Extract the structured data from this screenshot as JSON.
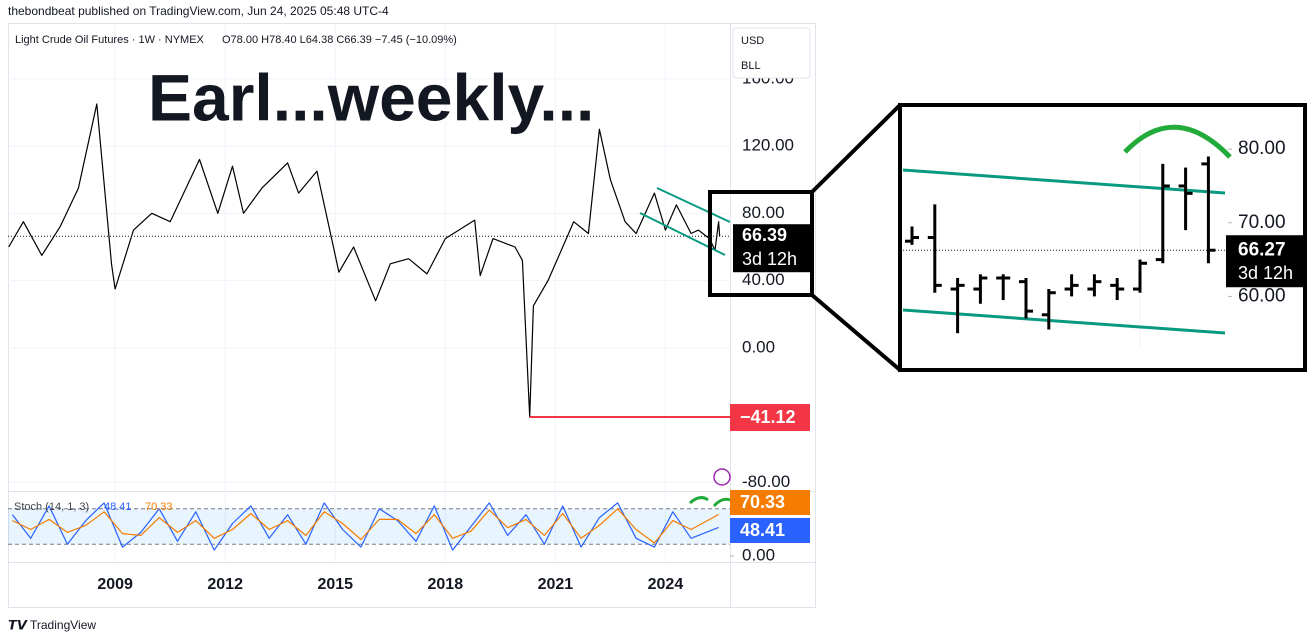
{
  "header": {
    "publisher": "thebondbeat published on TradingView.com, Jun 24, 2025 05:48 UTC-4",
    "footer": "TradingView"
  },
  "chart_data": [
    {
      "type": "line",
      "title": "Light Crude Oil Futures · 1W · NYMEX",
      "legend_text": "O78.00  H78.40  L64.38  C66.39  −7.45 (−10.09%)",
      "annotation": "Earl...weekly...",
      "currency": "USD",
      "unit": "BLL",
      "color": "#000000",
      "x": [
        2006.1,
        2006.5,
        2007.0,
        2007.5,
        2008.0,
        2008.5,
        2008.9,
        2009.0,
        2009.5,
        2010.0,
        2010.5,
        2011.3,
        2011.8,
        2012.2,
        2012.5,
        2013.0,
        2013.7,
        2014.0,
        2014.5,
        2014.9,
        2015.1,
        2015.5,
        2016.1,
        2016.5,
        2017.0,
        2017.5,
        2018.0,
        2018.8,
        2018.95,
        2019.3,
        2019.9,
        2020.1,
        2020.3,
        2020.4,
        2020.8,
        2021.0,
        2021.5,
        2021.9,
        2022.2,
        2022.5,
        2022.9,
        2023.2,
        2023.7,
        2024.0,
        2024.3,
        2024.7,
        2024.9,
        2025.2,
        2025.35,
        2025.45,
        2025.48
      ],
      "values": [
        60,
        75,
        55,
        72,
        95,
        145,
        50,
        35,
        70,
        80,
        75,
        112,
        80,
        108,
        80,
        95,
        110,
        92,
        105,
        65,
        45,
        60,
        28,
        50,
        53,
        44,
        65,
        76,
        43,
        65,
        60,
        52,
        -41.12,
        25,
        40,
        50,
        75,
        68,
        130,
        100,
        75,
        68,
        92,
        70,
        85,
        68,
        70,
        65,
        58,
        75,
        66.39
      ],
      "xlim": [
        2006.08,
        2025.76
      ],
      "xticks": [
        2009,
        2012,
        2015,
        2018,
        2021,
        2024
      ],
      "ylim": [
        -84.5,
        189
      ],
      "yticks": [
        {
          "value": -80,
          "label": "-80.00"
        },
        {
          "value": 0,
          "label": "0.00"
        },
        {
          "value": 40,
          "label": "40.00"
        },
        {
          "value": 80,
          "label": "80.00"
        },
        {
          "value": 120,
          "label": "120.00"
        },
        {
          "value": 160,
          "label": "160.00"
        }
      ],
      "last_price": 66.39,
      "countdown": "3d 12h",
      "low_label": {
        "value": -41.12,
        "label": "−41.12"
      },
      "low_color": "#f23645"
    },
    {
      "type": "line",
      "title": "Stoch (14, 1, 3)",
      "x": [
        2006.2,
        2006.7,
        2007.2,
        2007.7,
        2008.2,
        2008.7,
        2009.2,
        2009.7,
        2010.2,
        2010.7,
        2011.2,
        2011.7,
        2012.2,
        2012.7,
        2013.2,
        2013.7,
        2014.2,
        2014.7,
        2015.2,
        2015.7,
        2016.2,
        2016.7,
        2017.2,
        2017.7,
        2018.2,
        2018.7,
        2019.2,
        2019.7,
        2020.2,
        2020.7,
        2021.2,
        2021.7,
        2022.2,
        2022.7,
        2023.2,
        2023.7,
        2024.2,
        2024.7,
        2025.45
      ],
      "series": [
        {
          "color": "#2962ff",
          "values": [
            70,
            30,
            85,
            20,
            60,
            90,
            15,
            40,
            80,
            25,
            75,
            10,
            55,
            85,
            30,
            70,
            20,
            90,
            45,
            15,
            80,
            60,
            25,
            85,
            10,
            50,
            90,
            35,
            70,
            20,
            85,
            15,
            65,
            90,
            30,
            15,
            75,
            30,
            48.41
          ]
        },
        {
          "color": "#f57c00",
          "values": [
            60,
            45,
            62,
            40,
            52,
            75,
            38,
            35,
            65,
            40,
            60,
            30,
            45,
            72,
            45,
            60,
            35,
            75,
            55,
            28,
            62,
            62,
            38,
            70,
            30,
            42,
            78,
            48,
            62,
            35,
            72,
            30,
            52,
            80,
            45,
            22,
            60,
            45,
            70.33
          ]
        }
      ],
      "ylim": [
        0,
        100
      ],
      "yticks": [
        {
          "value": 0,
          "label": "0.00"
        }
      ],
      "bands": [
        20,
        80
      ]
    },
    {
      "type": "ohlc",
      "color": "#000000",
      "open": [
        67.5,
        68,
        61,
        61,
        62.5,
        62,
        57.5,
        61,
        61,
        61.5,
        61,
        65,
        75,
        78
      ],
      "high": [
        69.5,
        72.5,
        62.5,
        63,
        63,
        62.5,
        61,
        63,
        63,
        62.5,
        65,
        78,
        77.5,
        79
      ],
      "low": [
        67,
        60.5,
        55,
        59,
        59.5,
        57,
        55.5,
        60,
        60,
        59.5,
        60.5,
        64.5,
        69,
        64.5
      ],
      "close": [
        68,
        61.5,
        61.5,
        62.5,
        62.5,
        58,
        60.5,
        61.5,
        62,
        61,
        64.5,
        75,
        74,
        66.27
      ],
      "ylim": [
        50,
        86
      ],
      "yticks": [
        {
          "value": 60,
          "label": "60.00"
        },
        {
          "value": 70,
          "label": "70.00"
        },
        {
          "value": 80,
          "label": "80.00"
        }
      ],
      "last_price": 66.27,
      "countdown": "3d 12h"
    }
  ]
}
